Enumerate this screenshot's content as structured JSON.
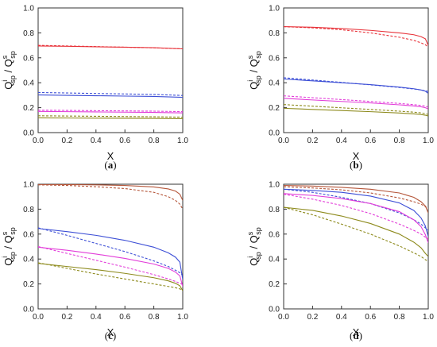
{
  "chart_data": [
    {
      "type": "line",
      "panel_label": "a",
      "xlabel": "X",
      "ylabel": {
        "main": "Q",
        "sup_top": "i",
        "sub": "sp",
        "sep": " / Q",
        "sup_top2": "s",
        "sub2": "sp"
      },
      "xlim": [
        0.0,
        1.0
      ],
      "ylim": [
        0.0,
        1.0
      ],
      "xticks": [
        "0.0",
        "0.2",
        "0.4",
        "0.6",
        "0.8",
        "1.0"
      ],
      "yticks": [
        "0.0",
        "0.2",
        "0.4",
        "0.6",
        "0.8",
        "1.0"
      ],
      "series": [
        {
          "color": "#e8333a",
          "style": "solid",
          "x": [
            0,
            0.2,
            0.4,
            0.6,
            0.8,
            1.0
          ],
          "y": [
            0.695,
            0.692,
            0.688,
            0.685,
            0.681,
            0.672
          ]
        },
        {
          "color": "#e8333a",
          "style": "dashed",
          "x": [
            0,
            0.2,
            0.4,
            0.6,
            0.8,
            1.0
          ],
          "y": [
            0.7,
            0.695,
            0.69,
            0.685,
            0.68,
            0.672
          ]
        },
        {
          "color": "#3d4fd6",
          "style": "solid",
          "x": [
            0,
            0.2,
            0.4,
            0.6,
            0.8,
            1.0
          ],
          "y": [
            0.302,
            0.299,
            0.296,
            0.293,
            0.29,
            0.283
          ]
        },
        {
          "color": "#3d4fd6",
          "style": "dashed",
          "x": [
            0,
            0.2,
            0.4,
            0.6,
            0.8,
            1.0
          ],
          "y": [
            0.322,
            0.318,
            0.314,
            0.31,
            0.306,
            0.298
          ]
        },
        {
          "color": "#e23cd9",
          "style": "solid",
          "x": [
            0,
            0.2,
            0.4,
            0.6,
            0.8,
            1.0
          ],
          "y": [
            0.17,
            0.168,
            0.166,
            0.164,
            0.162,
            0.158
          ]
        },
        {
          "color": "#e23cd9",
          "style": "dashed",
          "x": [
            0,
            0.2,
            0.4,
            0.6,
            0.8,
            1.0
          ],
          "y": [
            0.18,
            0.178,
            0.176,
            0.174,
            0.172,
            0.168
          ]
        },
        {
          "color": "#8d8a1c",
          "style": "solid",
          "x": [
            0,
            0.2,
            0.4,
            0.6,
            0.8,
            1.0
          ],
          "y": [
            0.118,
            0.117,
            0.116,
            0.115,
            0.114,
            0.112
          ]
        },
        {
          "color": "#8d8a1c",
          "style": "dashed",
          "x": [
            0,
            0.2,
            0.4,
            0.6,
            0.8,
            1.0
          ],
          "y": [
            0.135,
            0.133,
            0.131,
            0.129,
            0.127,
            0.124
          ]
        }
      ]
    },
    {
      "type": "line",
      "panel_label": "b",
      "xlabel": "X",
      "ylabel": {
        "main": "Q",
        "sup_top": "i",
        "sub": "sp",
        "sep": " / Q",
        "sup_top2": "s",
        "sub2": "sp"
      },
      "xlim": [
        0.0,
        1.0
      ],
      "ylim": [
        0.0,
        1.0
      ],
      "xticks": [
        "0.0",
        "0.2",
        "0.4",
        "0.6",
        "0.8",
        "1.0"
      ],
      "yticks": [
        "0.0",
        "0.2",
        "0.4",
        "0.6",
        "0.8",
        "1.0"
      ],
      "series": [
        {
          "color": "#e8333a",
          "style": "solid",
          "x": [
            0,
            0.2,
            0.4,
            0.6,
            0.8,
            0.9,
            0.95,
            0.98,
            1.0
          ],
          "y": [
            0.85,
            0.845,
            0.835,
            0.82,
            0.8,
            0.785,
            0.77,
            0.752,
            0.7
          ]
        },
        {
          "color": "#e8333a",
          "style": "dashed",
          "x": [
            0,
            0.2,
            0.4,
            0.6,
            0.8,
            0.9,
            0.95,
            0.98,
            1.0
          ],
          "y": [
            0.85,
            0.84,
            0.825,
            0.8,
            0.765,
            0.74,
            0.72,
            0.705,
            0.685
          ]
        },
        {
          "color": "#3d4fd6",
          "style": "solid",
          "x": [
            0,
            0.2,
            0.4,
            0.6,
            0.8,
            0.9,
            0.95,
            0.98,
            1.0
          ],
          "y": [
            0.43,
            0.415,
            0.4,
            0.385,
            0.365,
            0.352,
            0.342,
            0.332,
            0.315
          ]
        },
        {
          "color": "#3d4fd6",
          "style": "dashed",
          "x": [
            0,
            0.2,
            0.4,
            0.6,
            0.8,
            0.9,
            0.95,
            0.98,
            1.0
          ],
          "y": [
            0.44,
            0.422,
            0.403,
            0.383,
            0.362,
            0.35,
            0.342,
            0.335,
            0.33
          ]
        },
        {
          "color": "#e23cd9",
          "style": "solid",
          "x": [
            0,
            0.2,
            0.4,
            0.6,
            0.8,
            0.9,
            0.95,
            0.98,
            1.0
          ],
          "y": [
            0.275,
            0.262,
            0.25,
            0.238,
            0.223,
            0.214,
            0.207,
            0.2,
            0.19
          ]
        },
        {
          "color": "#e23cd9",
          "style": "dashed",
          "x": [
            0,
            0.2,
            0.4,
            0.6,
            0.8,
            0.9,
            0.95,
            0.98,
            1.0
          ],
          "y": [
            0.295,
            0.28,
            0.265,
            0.25,
            0.234,
            0.224,
            0.218,
            0.212,
            0.205
          ]
        },
        {
          "color": "#8d8a1c",
          "style": "solid",
          "x": [
            0,
            0.2,
            0.4,
            0.6,
            0.8,
            0.9,
            0.95,
            0.98,
            1.0
          ],
          "y": [
            0.195,
            0.186,
            0.177,
            0.168,
            0.157,
            0.15,
            0.145,
            0.14,
            0.133
          ]
        },
        {
          "color": "#8d8a1c",
          "style": "dashed",
          "x": [
            0,
            0.2,
            0.4,
            0.6,
            0.8,
            0.9,
            0.95,
            0.98,
            1.0
          ],
          "y": [
            0.225,
            0.212,
            0.199,
            0.186,
            0.172,
            0.164,
            0.158,
            0.152,
            0.145
          ]
        }
      ]
    },
    {
      "type": "line",
      "panel_label": "c",
      "xlabel": "X",
      "ylabel": {
        "main": "Q",
        "sup_top": "i",
        "sub": "sp",
        "sep": " / Q",
        "sup_top2": "s",
        "sub2": "sp"
      },
      "xlim": [
        0.0,
        1.0
      ],
      "ylim": [
        0.0,
        1.0
      ],
      "xticks": [
        "0.0",
        "0.2",
        "0.4",
        "0.6",
        "0.8",
        "1.0"
      ],
      "yticks": [
        "0.0",
        "0.2",
        "0.4",
        "0.6",
        "0.8",
        "1.0"
      ],
      "series": [
        {
          "color": "#b5563a",
          "style": "solid",
          "x": [
            0,
            0.2,
            0.4,
            0.6,
            0.8,
            0.9,
            0.95,
            0.98,
            1.0
          ],
          "y": [
            0.998,
            0.997,
            0.995,
            0.99,
            0.978,
            0.962,
            0.945,
            0.92,
            0.87
          ]
        },
        {
          "color": "#b5563a",
          "style": "dashed",
          "x": [
            0,
            0.2,
            0.4,
            0.6,
            0.8,
            0.9,
            0.95,
            0.98,
            1.0
          ],
          "y": [
            0.995,
            0.99,
            0.98,
            0.965,
            0.935,
            0.9,
            0.87,
            0.84,
            0.8
          ]
        },
        {
          "color": "#3d4fd6",
          "style": "solid",
          "x": [
            0,
            0.2,
            0.4,
            0.6,
            0.8,
            0.9,
            0.95,
            0.98,
            1.0
          ],
          "y": [
            0.645,
            0.62,
            0.59,
            0.55,
            0.495,
            0.45,
            0.415,
            0.375,
            0.235
          ]
        },
        {
          "color": "#3d4fd6",
          "style": "dashed",
          "x": [
            0,
            0.2,
            0.4,
            0.6,
            0.8,
            0.9,
            0.95,
            0.98,
            1.0
          ],
          "y": [
            0.65,
            0.59,
            0.525,
            0.46,
            0.385,
            0.34,
            0.31,
            0.29,
            0.27
          ]
        },
        {
          "color": "#e23cd9",
          "style": "solid",
          "x": [
            0,
            0.2,
            0.4,
            0.6,
            0.8,
            0.9,
            0.95,
            0.98,
            1.0
          ],
          "y": [
            0.495,
            0.47,
            0.44,
            0.405,
            0.36,
            0.325,
            0.295,
            0.265,
            0.18
          ]
        },
        {
          "color": "#e23cd9",
          "style": "dashed",
          "x": [
            0,
            0.2,
            0.4,
            0.6,
            0.8,
            0.9,
            0.95,
            0.98,
            1.0
          ],
          "y": [
            0.5,
            0.445,
            0.39,
            0.335,
            0.275,
            0.24,
            0.22,
            0.205,
            0.195
          ]
        },
        {
          "color": "#8d8a1c",
          "style": "solid",
          "x": [
            0,
            0.2,
            0.4,
            0.6,
            0.8,
            0.9,
            0.95,
            0.98,
            1.0
          ],
          "y": [
            0.365,
            0.34,
            0.315,
            0.285,
            0.25,
            0.225,
            0.205,
            0.185,
            0.145
          ]
        },
        {
          "color": "#8d8a1c",
          "style": "dashed",
          "x": [
            0,
            0.2,
            0.4,
            0.6,
            0.8,
            0.9,
            0.95,
            0.98,
            1.0
          ],
          "y": [
            0.37,
            0.325,
            0.28,
            0.24,
            0.2,
            0.18,
            0.17,
            0.16,
            0.15
          ]
        }
      ]
    },
    {
      "type": "line",
      "panel_label": "d",
      "xlabel": "X",
      "ylabel": {
        "main": "Q",
        "sup_top": "i",
        "sub": "sp",
        "sep": " / Q",
        "sup_top2": "s",
        "sub2": "sp"
      },
      "xlim": [
        0.0,
        1.0
      ],
      "ylim": [
        0.0,
        1.0
      ],
      "xticks": [
        "0.0",
        "0.2",
        "0.4",
        "0.6",
        "0.8",
        "1.0"
      ],
      "yticks": [
        "0.0",
        "0.2",
        "0.4",
        "0.6",
        "0.8",
        "1.0"
      ],
      "series": [
        {
          "color": "#b5563a",
          "style": "solid",
          "x": [
            0,
            0.2,
            0.4,
            0.6,
            0.8,
            0.9,
            0.95,
            0.98,
            1.0
          ],
          "y": [
            0.99,
            0.985,
            0.975,
            0.96,
            0.93,
            0.895,
            0.86,
            0.825,
            0.77
          ]
        },
        {
          "color": "#b5563a",
          "style": "dashed",
          "x": [
            0,
            0.2,
            0.4,
            0.6,
            0.8,
            0.9,
            0.95,
            0.98,
            1.0
          ],
          "y": [
            0.98,
            0.97,
            0.955,
            0.93,
            0.89,
            0.86,
            0.84,
            0.82,
            0.805
          ]
        },
        {
          "color": "#3d4fd6",
          "style": "solid",
          "x": [
            0,
            0.2,
            0.4,
            0.6,
            0.8,
            0.9,
            0.95,
            0.98,
            1.0
          ],
          "y": [
            0.96,
            0.95,
            0.935,
            0.905,
            0.85,
            0.79,
            0.73,
            0.665,
            0.58
          ]
        },
        {
          "color": "#3d4fd6",
          "style": "dashed",
          "x": [
            0,
            0.2,
            0.4,
            0.6,
            0.8,
            0.9,
            0.95,
            0.98,
            1.0
          ],
          "y": [
            0.96,
            0.935,
            0.895,
            0.845,
            0.77,
            0.715,
            0.68,
            0.65,
            0.63
          ]
        },
        {
          "color": "#e23cd9",
          "style": "solid",
          "x": [
            0,
            0.2,
            0.4,
            0.6,
            0.8,
            0.9,
            0.95,
            0.98,
            1.0
          ],
          "y": [
            0.925,
            0.91,
            0.885,
            0.845,
            0.78,
            0.715,
            0.66,
            0.595,
            0.53
          ]
        },
        {
          "color": "#e23cd9",
          "style": "dashed",
          "x": [
            0,
            0.2,
            0.4,
            0.6,
            0.8,
            0.9,
            0.95,
            0.98,
            1.0
          ],
          "y": [
            0.92,
            0.88,
            0.83,
            0.765,
            0.68,
            0.63,
            0.6,
            0.575,
            0.56
          ]
        },
        {
          "color": "#8d8a1c",
          "style": "solid",
          "x": [
            0,
            0.2,
            0.4,
            0.6,
            0.8,
            0.9,
            0.95,
            0.98,
            1.0
          ],
          "y": [
            0.815,
            0.79,
            0.745,
            0.685,
            0.6,
            0.535,
            0.49,
            0.445,
            0.42
          ]
        },
        {
          "color": "#8d8a1c",
          "style": "dashed",
          "x": [
            0,
            0.2,
            0.4,
            0.6,
            0.8,
            0.9,
            0.95,
            0.98,
            1.0
          ],
          "y": [
            0.815,
            0.755,
            0.68,
            0.6,
            0.505,
            0.45,
            0.42,
            0.395,
            0.38
          ]
        }
      ]
    }
  ]
}
